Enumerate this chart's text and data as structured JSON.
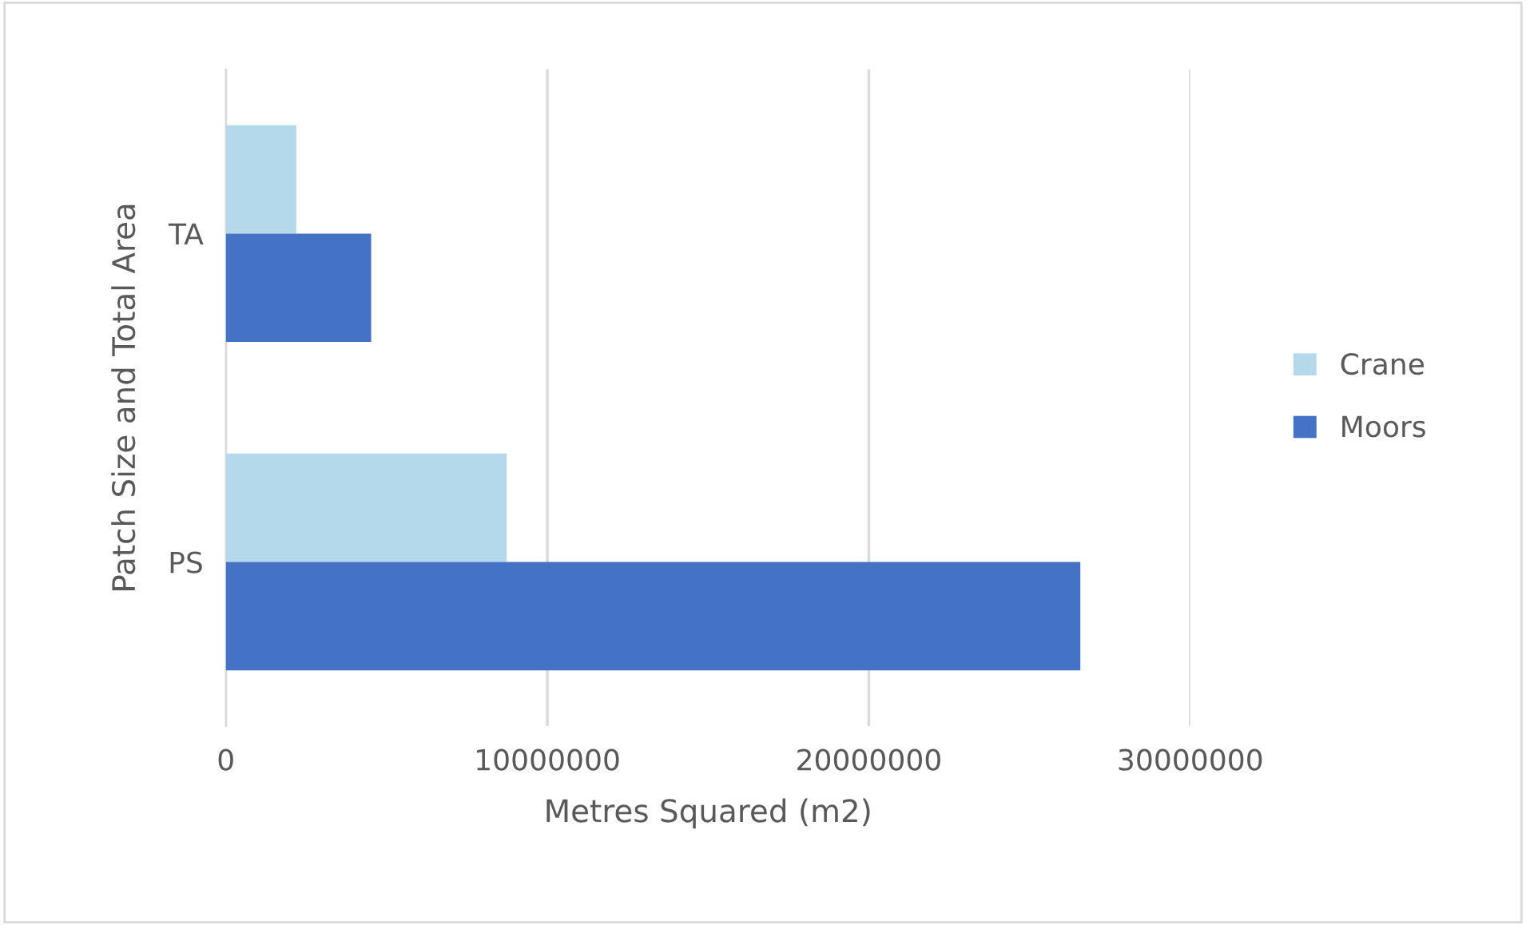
{
  "chart_data": {
    "type": "bar",
    "orientation": "horizontal",
    "xlabel": "Metres Squared (m2)",
    "ylabel": "Patch Size and Total Area",
    "categories": [
      "TA",
      "PS"
    ],
    "series": [
      {
        "name": "Crane",
        "color": "#b4d9ea",
        "values": [
          2190000,
          8740000
        ]
      },
      {
        "name": "Moors",
        "color": "#4472c4",
        "values": [
          4520000,
          26580000
        ]
      }
    ],
    "xlim": [
      0,
      30000000
    ],
    "xticks": [
      0,
      10000000,
      20000000,
      30000000
    ],
    "grid": "x",
    "legend": "right"
  }
}
